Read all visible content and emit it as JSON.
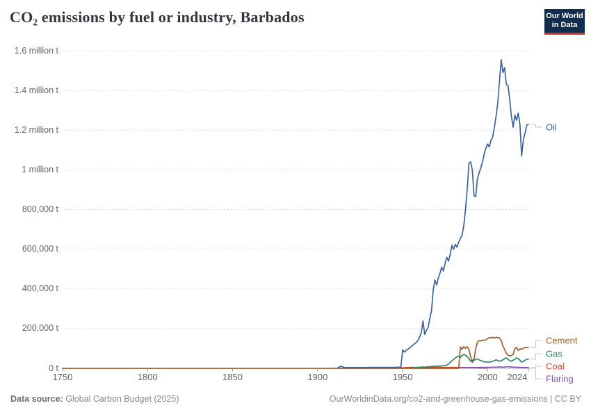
{
  "header": {
    "title": "CO₂ emissions by fuel or industry, Barbados",
    "logo": {
      "line1": "Our World",
      "line2": "in Data",
      "bg_color": "#102d4e",
      "accent_color": "#d4352b"
    }
  },
  "footer": {
    "source_label": "Data source:",
    "source_text": "Global Carbon Budget (2025)",
    "credit_text": "OurWorldinData.org/co2-and-greenhouse-gas-emissions | CC BY"
  },
  "chart_data": {
    "type": "line",
    "title": "CO₂ emissions by fuel or industry, Barbados",
    "xlabel": "",
    "ylabel": "",
    "grid": "dashed-horizontal",
    "legend_position": "right-end-labels",
    "x_axis": {
      "range": [
        1750,
        2024
      ],
      "tick_labels": [
        "1750",
        "1800",
        "1850",
        "1900",
        "1950",
        "2000",
        "2024"
      ],
      "tick_values": [
        1750,
        1800,
        1850,
        1900,
        1950,
        2000,
        2024
      ]
    },
    "y_axis": {
      "range_tonnes": [
        0,
        1600000
      ],
      "ticks": [
        {
          "label": "0 t",
          "value": 0
        },
        {
          "label": "200,000 t",
          "value": 200
        },
        {
          "label": "400,000 t",
          "value": 400
        },
        {
          "label": "600,000 t",
          "value": 600
        },
        {
          "label": "800,000 t",
          "value": 800
        },
        {
          "label": "1 million t",
          "value": 1000
        },
        {
          "label": "1.2 million t",
          "value": 1200
        },
        {
          "label": "1.4 million t",
          "value": 1400
        },
        {
          "label": "1.6 million t",
          "value": 1600
        }
      ]
    },
    "values_unit": "thousand tonnes of CO₂ per year",
    "series": [
      {
        "name": "Oil",
        "color": "#3b639e",
        "first_year": 1912,
        "values": [
          3,
          8,
          10,
          6,
          4,
          4,
          4,
          4,
          4,
          4,
          4,
          4,
          4,
          4,
          4,
          4,
          4,
          4,
          5,
          5,
          5,
          5,
          5,
          5,
          5,
          5,
          5,
          5,
          5,
          5,
          5,
          5,
          5,
          5,
          5,
          6,
          6,
          7,
          94,
          82,
          90,
          96,
          102,
          110,
          117,
          124,
          131,
          140,
          157,
          180,
          238,
          171,
          192,
          205,
          252,
          290,
          395,
          445,
          420,
          455,
          480,
          510,
          490,
          530,
          560,
          540,
          575,
          620,
          600,
          625,
          610,
          635,
          655,
          670,
          720,
          800,
          905,
          1030,
          1040,
          1000,
          870,
          865,
          955,
          985,
          1010,
          1040,
          1080,
          1110,
          1130,
          1115,
          1150,
          1165,
          1215,
          1270,
          1340,
          1450,
          1555,
          1490,
          1515,
          1430,
          1425,
          1355,
          1270,
          1215,
          1275,
          1250,
          1285,
          1230,
          1070,
          1150,
          1185,
          1225,
          1230
        ]
      },
      {
        "name": "Cement",
        "color": "#a1602f",
        "zero_from": 1750,
        "first_year": 1984,
        "values": [
          108,
          96,
          110,
          100,
          109,
          96,
          58,
          30,
          46,
          100,
          130,
          141,
          138,
          143,
          140,
          144,
          150,
          155,
          154,
          156,
          153,
          156,
          155,
          152,
          140,
          112,
          95,
          76,
          66,
          63,
          64,
          70,
          98,
          106,
          90,
          98,
          96,
          101,
          106,
          104,
          106
        ]
      },
      {
        "name": "Gas",
        "color": "#2c8465",
        "first_year": 1955,
        "values": [
          2,
          3,
          3,
          4,
          5,
          6,
          6,
          7,
          6,
          7,
          8,
          8,
          9,
          10,
          10,
          11,
          12,
          12,
          13,
          13,
          14,
          16,
          22,
          30,
          38,
          45,
          52,
          58,
          62,
          55,
          65,
          70,
          66,
          60,
          48,
          36,
          42,
          40,
          46,
          48,
          43,
          39,
          36,
          33,
          31,
          33,
          31,
          33,
          36,
          39,
          43,
          39,
          36,
          39,
          43,
          49,
          53,
          46,
          39,
          36,
          41,
          46,
          53,
          49,
          41,
          31,
          36,
          41,
          46,
          46
        ]
      },
      {
        "name": "Coal",
        "color": "#cf4627",
        "first_year": 1949,
        "values": [
          2,
          3,
          3,
          4,
          4,
          4,
          5,
          5,
          4,
          4,
          5,
          5,
          5,
          5,
          4,
          4,
          5,
          5,
          5,
          5,
          5,
          5,
          5,
          5,
          5,
          4,
          4,
          4,
          4,
          4,
          5,
          5,
          4,
          4,
          4,
          4,
          4,
          4,
          4,
          4,
          4,
          4,
          3,
          3,
          3,
          3,
          2,
          2,
          2,
          1,
          1
        ]
      },
      {
        "name": "Flaring",
        "color": "#8455b2",
        "first_year": 1983,
        "values": [
          2,
          3,
          3,
          3,
          3,
          4,
          4,
          4,
          4,
          4,
          4,
          4,
          4,
          5,
          5,
          5,
          5,
          5,
          5,
          5,
          6,
          6,
          6,
          7,
          7,
          7,
          6,
          6,
          8,
          8,
          8,
          7,
          6,
          6,
          5,
          5,
          5,
          4,
          4,
          4,
          4,
          4
        ]
      }
    ]
  }
}
